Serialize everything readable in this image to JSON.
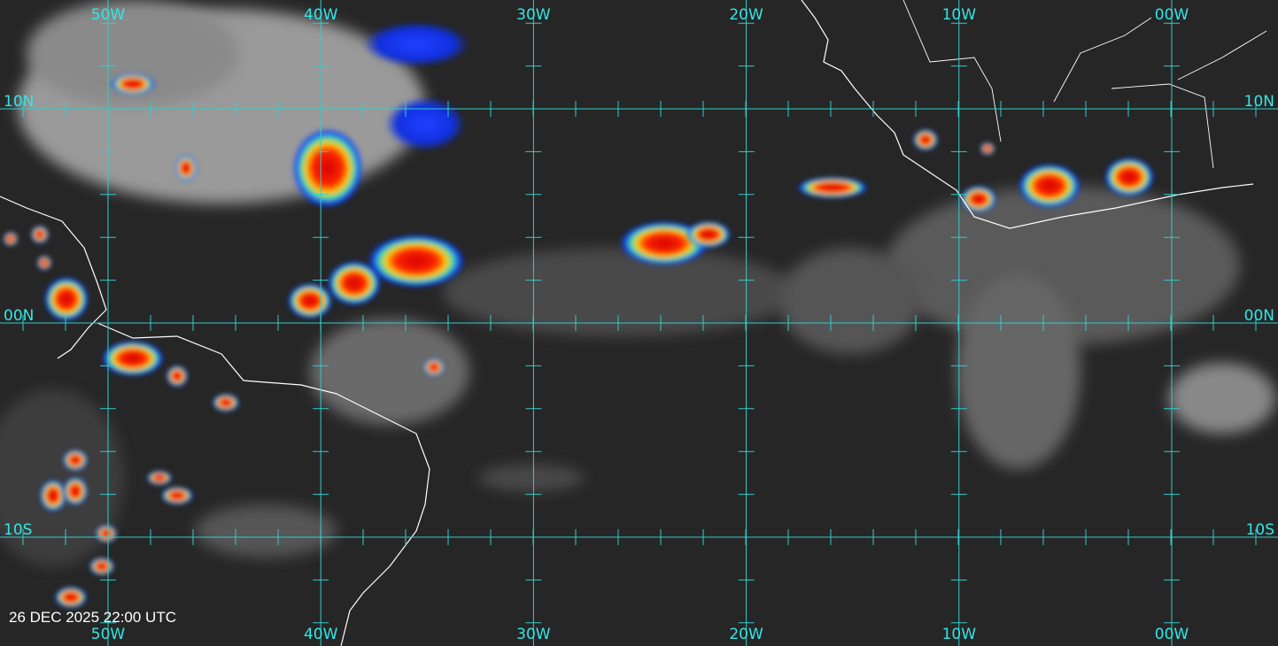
{
  "map": {
    "longitudes": [
      {
        "label": "50W"
      },
      {
        "label": "40W"
      },
      {
        "label": "30W"
      },
      {
        "label": "20W"
      },
      {
        "label": "10W"
      },
      {
        "label": "00W"
      }
    ],
    "latitudes": [
      {
        "label": "10N"
      },
      {
        "label": "00N"
      },
      {
        "label": "10S"
      }
    ],
    "timestamp": "26 DEC 2025 22:00 UTC"
  }
}
